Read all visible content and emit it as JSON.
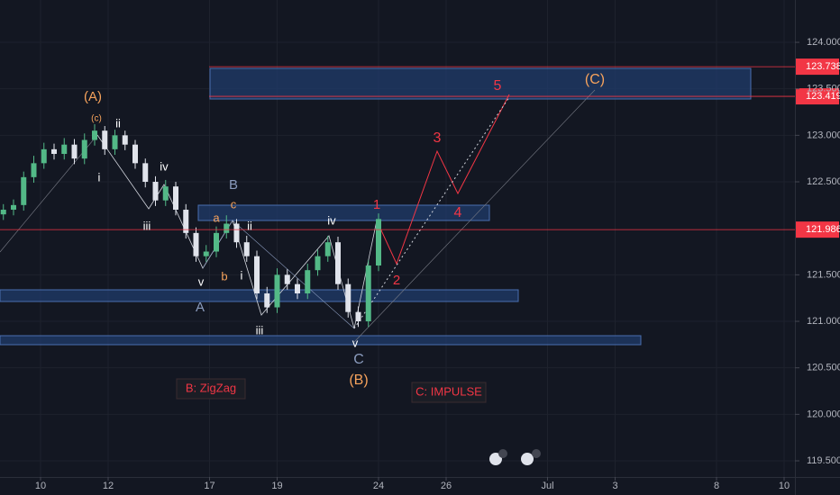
{
  "chart_data": {
    "type": "candlestick",
    "x": [
      -1.1,
      -0.8,
      -0.5,
      -0.2,
      0.1,
      0.4,
      0.7,
      1.0,
      1.3,
      1.6,
      1.9,
      2.2,
      2.5,
      2.8,
      3.1,
      3.4,
      3.7,
      4.0,
      4.3,
      4.6,
      4.9,
      5.2,
      5.5,
      5.8,
      6.1,
      6.4,
      6.7,
      7.0,
      7.3,
      7.6,
      7.9,
      8.2,
      8.5,
      8.8,
      9.1,
      9.4,
      9.7,
      10.0
    ],
    "open": [
      122.15,
      122.2,
      122.25,
      122.55,
      122.7,
      122.85,
      122.8,
      122.9,
      122.75,
      122.95,
      123.05,
      122.85,
      123.0,
      122.9,
      122.7,
      122.5,
      122.3,
      122.45,
      122.2,
      121.95,
      121.7,
      121.75,
      121.95,
      122.05,
      121.85,
      121.7,
      121.3,
      121.15,
      121.5,
      121.4,
      121.3,
      121.55,
      121.7,
      121.85,
      121.4,
      121.1,
      121.0,
      121.6
    ],
    "close": [
      122.2,
      122.25,
      122.55,
      122.7,
      122.85,
      122.8,
      122.9,
      122.75,
      122.95,
      123.05,
      122.85,
      123.0,
      122.9,
      122.7,
      122.5,
      122.3,
      122.45,
      122.2,
      121.95,
      121.7,
      121.75,
      121.95,
      122.05,
      121.85,
      121.7,
      121.3,
      121.15,
      121.5,
      121.4,
      121.3,
      121.55,
      121.7,
      121.85,
      121.4,
      121.1,
      121.0,
      121.6,
      122.1
    ],
    "high": [
      122.26,
      122.31,
      122.61,
      122.78,
      122.92,
      122.91,
      122.97,
      122.96,
      123.02,
      123.12,
      123.1,
      123.06,
      123.05,
      122.95,
      122.75,
      122.56,
      122.52,
      122.5,
      122.26,
      122.01,
      121.82,
      122.02,
      122.14,
      122.1,
      121.92,
      121.76,
      121.37,
      121.57,
      121.56,
      121.46,
      121.62,
      121.77,
      121.92,
      121.91,
      121.46,
      121.16,
      121.66,
      122.16
    ],
    "low": [
      122.09,
      122.14,
      122.19,
      122.49,
      122.64,
      122.74,
      122.74,
      122.69,
      122.69,
      122.89,
      122.79,
      122.79,
      122.84,
      122.64,
      122.44,
      122.24,
      122.24,
      122.14,
      121.89,
      121.64,
      121.64,
      121.69,
      121.89,
      121.79,
      121.64,
      121.24,
      121.09,
      121.09,
      121.34,
      121.24,
      121.24,
      121.49,
      121.64,
      121.34,
      121.04,
      120.94,
      120.94,
      121.54
    ],
    "up_color": "#53b987",
    "down_color": "#e0e3eb",
    "xlim": [
      -1.2,
      22.32
    ],
    "ylim": [
      119.326,
      124.455
    ],
    "xticks": [
      {
        "value": 0,
        "label": "10"
      },
      {
        "value": 2,
        "label": "12"
      },
      {
        "value": 5,
        "label": "17"
      },
      {
        "value": 7,
        "label": "19"
      },
      {
        "value": 10,
        "label": "24"
      },
      {
        "value": 12,
        "label": "26"
      },
      {
        "value": 15,
        "label": "Jul"
      },
      {
        "value": 17,
        "label": "3"
      },
      {
        "value": 20,
        "label": "8"
      },
      {
        "value": 22,
        "label": "10"
      }
    ],
    "yticks": [
      {
        "value": 124,
        "label": "124.000"
      },
      {
        "value": 123.5,
        "label": "123.500"
      },
      {
        "value": 123,
        "label": "123.000"
      },
      {
        "value": 122.5,
        "label": "122.500"
      },
      {
        "value": 121.5,
        "label": "121.500"
      },
      {
        "value": 121,
        "label": "121.000"
      },
      {
        "value": 120.5,
        "label": "120.500"
      },
      {
        "value": 120,
        "label": "120.000"
      },
      {
        "value": 119.5,
        "label": "119.500"
      }
    ],
    "grid": true,
    "levels": [
      {
        "value": 123.738,
        "label": "123.738"
      },
      {
        "value": 123.419,
        "label": "123.419"
      },
      {
        "value": 121.986,
        "label": "121.986"
      }
    ],
    "level_color": "#f23645",
    "annotations": [
      "(A)",
      "(c)",
      "ii",
      "i",
      "iv",
      "iii",
      "v",
      "A",
      "B",
      "a",
      "c",
      "b",
      "ii",
      "i",
      "iii",
      "iv",
      "v",
      "C",
      "(B)",
      "1",
      "2",
      "3",
      "4",
      "5",
      "(C)",
      "B: ZigZag",
      "C: IMPULSE"
    ]
  }
}
